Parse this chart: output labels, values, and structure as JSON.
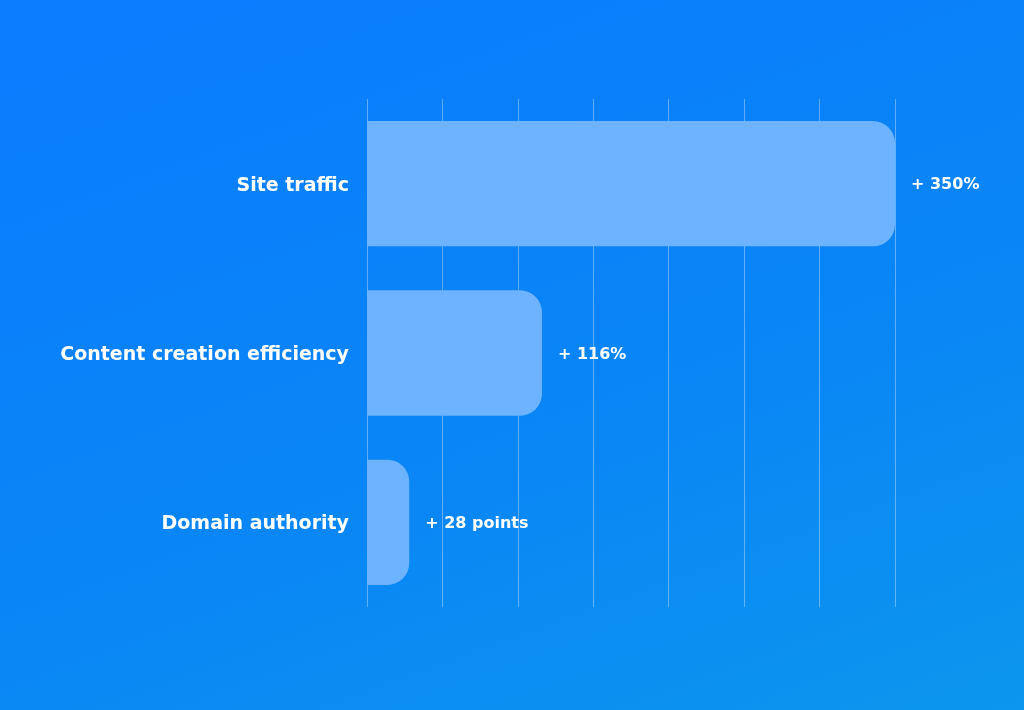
{
  "chart_data": {
    "type": "bar",
    "orientation": "horizontal",
    "categories": [
      "Site traffic",
      "Content creation efficiency",
      "Domain authority"
    ],
    "values": [
      350,
      116,
      28
    ],
    "value_labels": [
      "+ 350%",
      "+ 116%",
      "+ 28 points"
    ],
    "color": "#6db3ff",
    "xlim": [
      0,
      350
    ],
    "xticks": [
      {
        "value": 0,
        "label": null
      },
      {
        "value": 50,
        "label": null
      },
      {
        "value": 100,
        "label": null
      },
      {
        "value": 150,
        "label": null
      },
      {
        "value": 200,
        "label": null
      },
      {
        "value": 250,
        "label": null
      },
      {
        "value": 300,
        "label": null
      },
      {
        "value": 350,
        "label": null
      }
    ],
    "grid": "x",
    "tick_labels": "y"
  }
}
